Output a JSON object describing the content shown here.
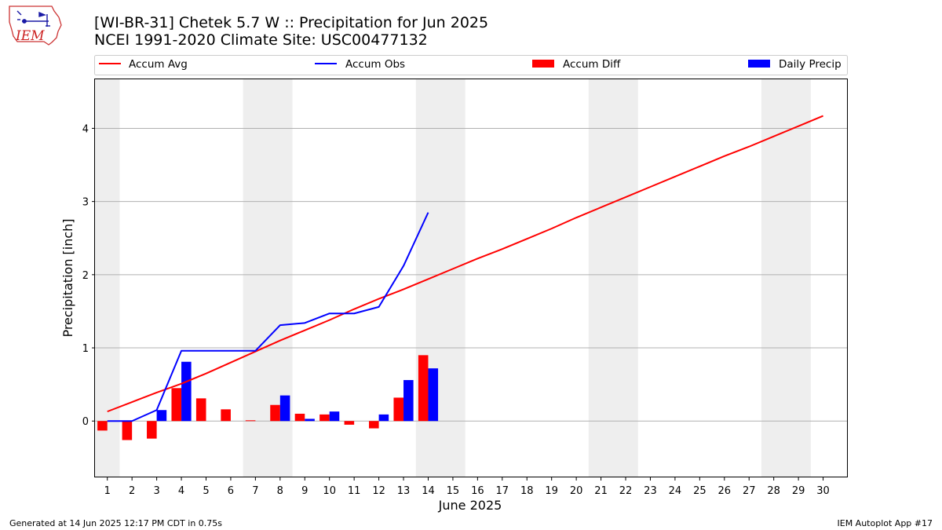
{
  "header": {
    "title_line1": "[WI-BR-31] Chetek 5.7 W :: Precipitation for Jun 2025",
    "title_line2": "NCEI 1991-2020 Climate Site: USC00477132"
  },
  "logo": {
    "text": "IEM",
    "icon": "iowa-state-outline-logo"
  },
  "footer": {
    "left": "Generated at 14 Jun 2025 12:17 PM CDT in 0.75s",
    "right": "IEM Autoplot App #17"
  },
  "colors": {
    "red": "#ff0000",
    "blue": "#0000ff",
    "weekend_shade": "#eeeeee",
    "grid": "#b0b0b0"
  },
  "chart_data": {
    "type": "bar",
    "xlabel": "June 2025",
    "ylabel": "Precipitation [inch]",
    "ylim": [
      -0.77,
      4.67
    ],
    "xlim": [
      0.5,
      31.0
    ],
    "yticks": [
      0,
      1,
      2,
      3,
      4
    ],
    "grid": "horizontal",
    "legend_placement": "top",
    "categories": [
      "1",
      "2",
      "3",
      "4",
      "5",
      "6",
      "7",
      "8",
      "9",
      "10",
      "11",
      "12",
      "13",
      "14",
      "15",
      "16",
      "17",
      "18",
      "19",
      "20",
      "21",
      "22",
      "23",
      "24",
      "25",
      "26",
      "27",
      "28",
      "29",
      "30"
    ],
    "weekend_shaded_days": [
      [
        1,
        1
      ],
      [
        7,
        8
      ],
      [
        14,
        15
      ],
      [
        21,
        22
      ],
      [
        28,
        29
      ]
    ],
    "legend": [
      {
        "name": "Accum Avg",
        "kind": "line",
        "color": "#ff0000"
      },
      {
        "name": "Accum Obs",
        "kind": "line",
        "color": "#0000ff"
      },
      {
        "name": "Accum Diff",
        "kind": "bar",
        "color": "#ff0000"
      },
      {
        "name": "Daily Precip",
        "kind": "bar",
        "color": "#0000ff"
      }
    ],
    "series": [
      {
        "name": "Accum Avg",
        "type": "line",
        "color": "#ff0000",
        "x": [
          1,
          2,
          3,
          4,
          5,
          6,
          7,
          8,
          9,
          10,
          11,
          12,
          13,
          14,
          15,
          16,
          17,
          18,
          19,
          20,
          21,
          22,
          23,
          24,
          25,
          26,
          27,
          28,
          29,
          30
        ],
        "values": [
          0.13,
          0.26,
          0.39,
          0.51,
          0.65,
          0.8,
          0.95,
          1.1,
          1.24,
          1.38,
          1.53,
          1.67,
          1.8,
          1.94,
          2.08,
          2.22,
          2.35,
          2.49,
          2.63,
          2.78,
          2.92,
          3.06,
          3.2,
          3.34,
          3.48,
          3.62,
          3.75,
          3.89,
          4.03,
          4.17
        ]
      },
      {
        "name": "Accum Obs",
        "type": "line",
        "color": "#0000ff",
        "x": [
          1,
          2,
          3,
          4,
          5,
          6,
          7,
          8,
          9,
          10,
          11,
          12,
          13,
          14
        ],
        "values": [
          0.0,
          0.0,
          0.15,
          0.96,
          0.96,
          0.96,
          0.96,
          1.31,
          1.34,
          1.47,
          1.47,
          1.56,
          2.12,
          2.85
        ]
      },
      {
        "name": "Accum Diff",
        "type": "bar",
        "color": "#ff0000",
        "x": [
          1,
          2,
          3,
          4,
          5,
          6,
          7,
          8,
          9,
          10,
          11,
          12,
          13,
          14
        ],
        "values": [
          -0.13,
          -0.26,
          -0.24,
          0.45,
          0.31,
          0.16,
          0.01,
          0.22,
          0.1,
          0.09,
          -0.05,
          -0.1,
          0.32,
          0.9
        ]
      },
      {
        "name": "Daily Precip",
        "type": "bar",
        "color": "#0000ff",
        "x": [
          1,
          2,
          3,
          4,
          5,
          6,
          7,
          8,
          9,
          10,
          11,
          12,
          13,
          14
        ],
        "values": [
          0.0,
          0.0,
          0.15,
          0.81,
          0.0,
          0.0,
          0.0,
          0.35,
          0.03,
          0.13,
          0.0,
          0.09,
          0.56,
          0.72
        ]
      }
    ]
  }
}
